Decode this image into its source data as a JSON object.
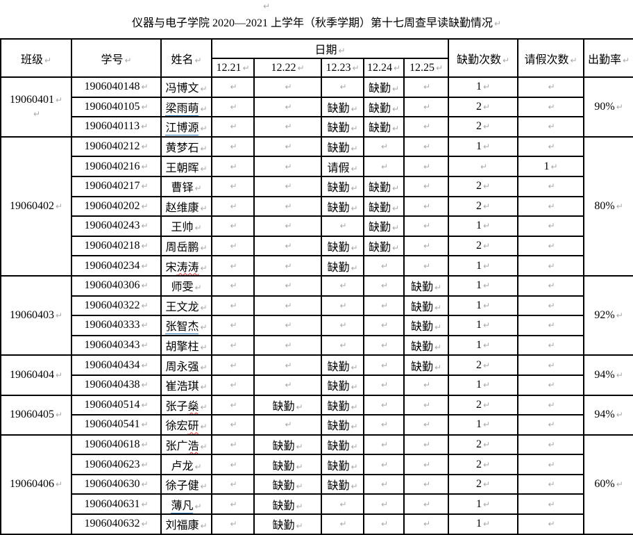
{
  "doc": {
    "title": "仪器与电子学院 2020—2021 上学年（秋季学期）第十七周查早读缺勤情况",
    "mark": "↵"
  },
  "colors": {
    "border": "#000000",
    "mark_gray": "#a8a8a8",
    "underline_blue": "#2e74b5",
    "wavy_red": "#e03131"
  },
  "table": {
    "headers": {
      "class": "班级",
      "student_id": "学号",
      "name": "姓名",
      "date": "日期",
      "absent_count": "缺勤次数",
      "leave_count": "请假次数",
      "attendance_rate": "出勤率",
      "dates": [
        "12.21",
        "12.22",
        "12.23",
        "12.24",
        "12.25"
      ]
    },
    "absent_label": "缺勤",
    "leave_label": "请假",
    "groups": [
      {
        "class": "19060401",
        "rate": "90%",
        "extra_mark": true,
        "rows": [
          {
            "id": "1906040148",
            "name": {
              "pre": "冯博文",
              "marked": "",
              "mark": ""
            },
            "days": [
              "",
              "",
              "",
              "缺勤",
              ""
            ],
            "absent": "1",
            "leave": ""
          },
          {
            "id": "1906040105",
            "name": {
              "pre": "",
              "marked": "梁雨萌",
              "mark": "blue"
            },
            "days": [
              "",
              "",
              "缺勤",
              "缺勤",
              ""
            ],
            "absent": "2",
            "leave": ""
          },
          {
            "id": "1906040113",
            "name": {
              "pre": "",
              "marked": "江博源",
              "mark": "blue"
            },
            "days": [
              "",
              "",
              "缺勤",
              "缺勤",
              ""
            ],
            "absent": "2",
            "leave": ""
          }
        ]
      },
      {
        "class": "19060402",
        "rate": "80%",
        "extra_mark": false,
        "rows": [
          {
            "id": "1906040212",
            "name": {
              "pre": "黄梦石",
              "marked": "",
              "mark": ""
            },
            "days": [
              "",
              "",
              "缺勤",
              "",
              ""
            ],
            "absent": "1",
            "leave": ""
          },
          {
            "id": "1906040216",
            "name": {
              "pre": "王朝晖",
              "marked": "",
              "mark": ""
            },
            "days": [
              "",
              "",
              "请假",
              "",
              ""
            ],
            "absent": "",
            "leave": "1"
          },
          {
            "id": "1906040217",
            "name": {
              "pre": "曹铎",
              "marked": "",
              "mark": ""
            },
            "days": [
              "",
              "",
              "缺勤",
              "缺勤",
              ""
            ],
            "absent": "2",
            "leave": ""
          },
          {
            "id": "1906040202",
            "name": {
              "pre": "赵维康",
              "marked": "",
              "mark": ""
            },
            "days": [
              "",
              "",
              "缺勤",
              "缺勤",
              ""
            ],
            "absent": "2",
            "leave": ""
          },
          {
            "id": "1906040243",
            "name": {
              "pre": "王帅",
              "marked": "",
              "mark": ""
            },
            "days": [
              "",
              "",
              "",
              "缺勤",
              ""
            ],
            "absent": "1",
            "leave": ""
          },
          {
            "id": "1906040218",
            "name": {
              "pre": "周岳鹏",
              "marked": "",
              "mark": ""
            },
            "days": [
              "",
              "",
              "缺勤",
              "缺勤",
              ""
            ],
            "absent": "2",
            "leave": ""
          },
          {
            "id": "1906040234",
            "name": {
              "pre": "宋",
              "marked": "涛涛",
              "mark": "redwavy"
            },
            "days": [
              "",
              "",
              "缺勤",
              "",
              ""
            ],
            "absent": "1",
            "leave": ""
          }
        ]
      },
      {
        "class": "19060403",
        "rate": "92%",
        "extra_mark": false,
        "rows": [
          {
            "id": "1906040306",
            "name": {
              "pre": "师雯",
              "marked": "",
              "mark": ""
            },
            "days": [
              "",
              "",
              "",
              "",
              "缺勤"
            ],
            "absent": "1",
            "leave": ""
          },
          {
            "id": "1906040322",
            "name": {
              "pre": "王文龙",
              "marked": "",
              "mark": ""
            },
            "days": [
              "",
              "",
              "",
              "",
              "缺勤"
            ],
            "absent": "1",
            "leave": ""
          },
          {
            "id": "1906040333",
            "name": {
              "pre": "",
              "marked": "张智杰",
              "mark": "blue"
            },
            "days": [
              "",
              "",
              "",
              "",
              "缺勤"
            ],
            "absent": "1",
            "leave": ""
          },
          {
            "id": "1906040343",
            "name": {
              "pre": "胡擎柱",
              "marked": "",
              "mark": ""
            },
            "days": [
              "",
              "",
              "",
              "",
              "缺勤"
            ],
            "absent": "1",
            "leave": ""
          }
        ]
      },
      {
        "class": "19060404",
        "rate": "94%",
        "extra_mark": false,
        "rows": [
          {
            "id": "1906040434",
            "name": {
              "pre": "周永强",
              "marked": "",
              "mark": ""
            },
            "days": [
              "",
              "",
              "缺勤",
              "",
              "缺勤"
            ],
            "absent": "2",
            "leave": ""
          },
          {
            "id": "1906040438",
            "name": {
              "pre": "崔浩琪",
              "marked": "",
              "mark": ""
            },
            "days": [
              "",
              "",
              "缺勤",
              "",
              ""
            ],
            "absent": "1",
            "leave": ""
          }
        ]
      },
      {
        "class": "19060405",
        "rate": "94%",
        "extra_mark": false,
        "rows": [
          {
            "id": "1906040514",
            "name": {
              "pre": "张子",
              "marked": "燊",
              "mark": "redwavy"
            },
            "days": [
              "",
              "缺勤",
              "缺勤",
              "",
              ""
            ],
            "absent": "2",
            "leave": ""
          },
          {
            "id": "1906040541",
            "name": {
              "pre": "徐宏",
              "marked": "研",
              "mark": "redwavy"
            },
            "days": [
              "",
              "",
              "缺勤",
              "",
              ""
            ],
            "absent": "1",
            "leave": ""
          }
        ]
      },
      {
        "class": "19060406",
        "rate": "60%",
        "extra_mark": false,
        "rows": [
          {
            "id": "1906040618",
            "name": {
              "pre": "张广",
              "marked": "浩",
              "mark": "redwavy"
            },
            "days": [
              "",
              "缺勤",
              "缺勤",
              "",
              ""
            ],
            "absent": "2",
            "leave": ""
          },
          {
            "id": "1906040623",
            "name": {
              "pre": "卢龙",
              "marked": "",
              "mark": ""
            },
            "days": [
              "",
              "缺勤",
              "缺勤",
              "",
              ""
            ],
            "absent": "2",
            "leave": ""
          },
          {
            "id": "1906040630",
            "name": {
              "pre": "徐子健",
              "marked": "",
              "mark": ""
            },
            "days": [
              "",
              "缺勤",
              "缺勤",
              "",
              ""
            ],
            "absent": "2",
            "leave": ""
          },
          {
            "id": "1906040631",
            "name": {
              "pre": "",
              "marked": "薄凡",
              "mark": "blue"
            },
            "days": [
              "",
              "缺勤",
              "",
              "",
              ""
            ],
            "absent": "1",
            "leave": ""
          },
          {
            "id": "1906040632",
            "name": {
              "pre": "刘福康",
              "marked": "",
              "mark": ""
            },
            "days": [
              "",
              "缺勤",
              "",
              "",
              ""
            ],
            "absent": "1",
            "leave": ""
          }
        ]
      }
    ]
  }
}
